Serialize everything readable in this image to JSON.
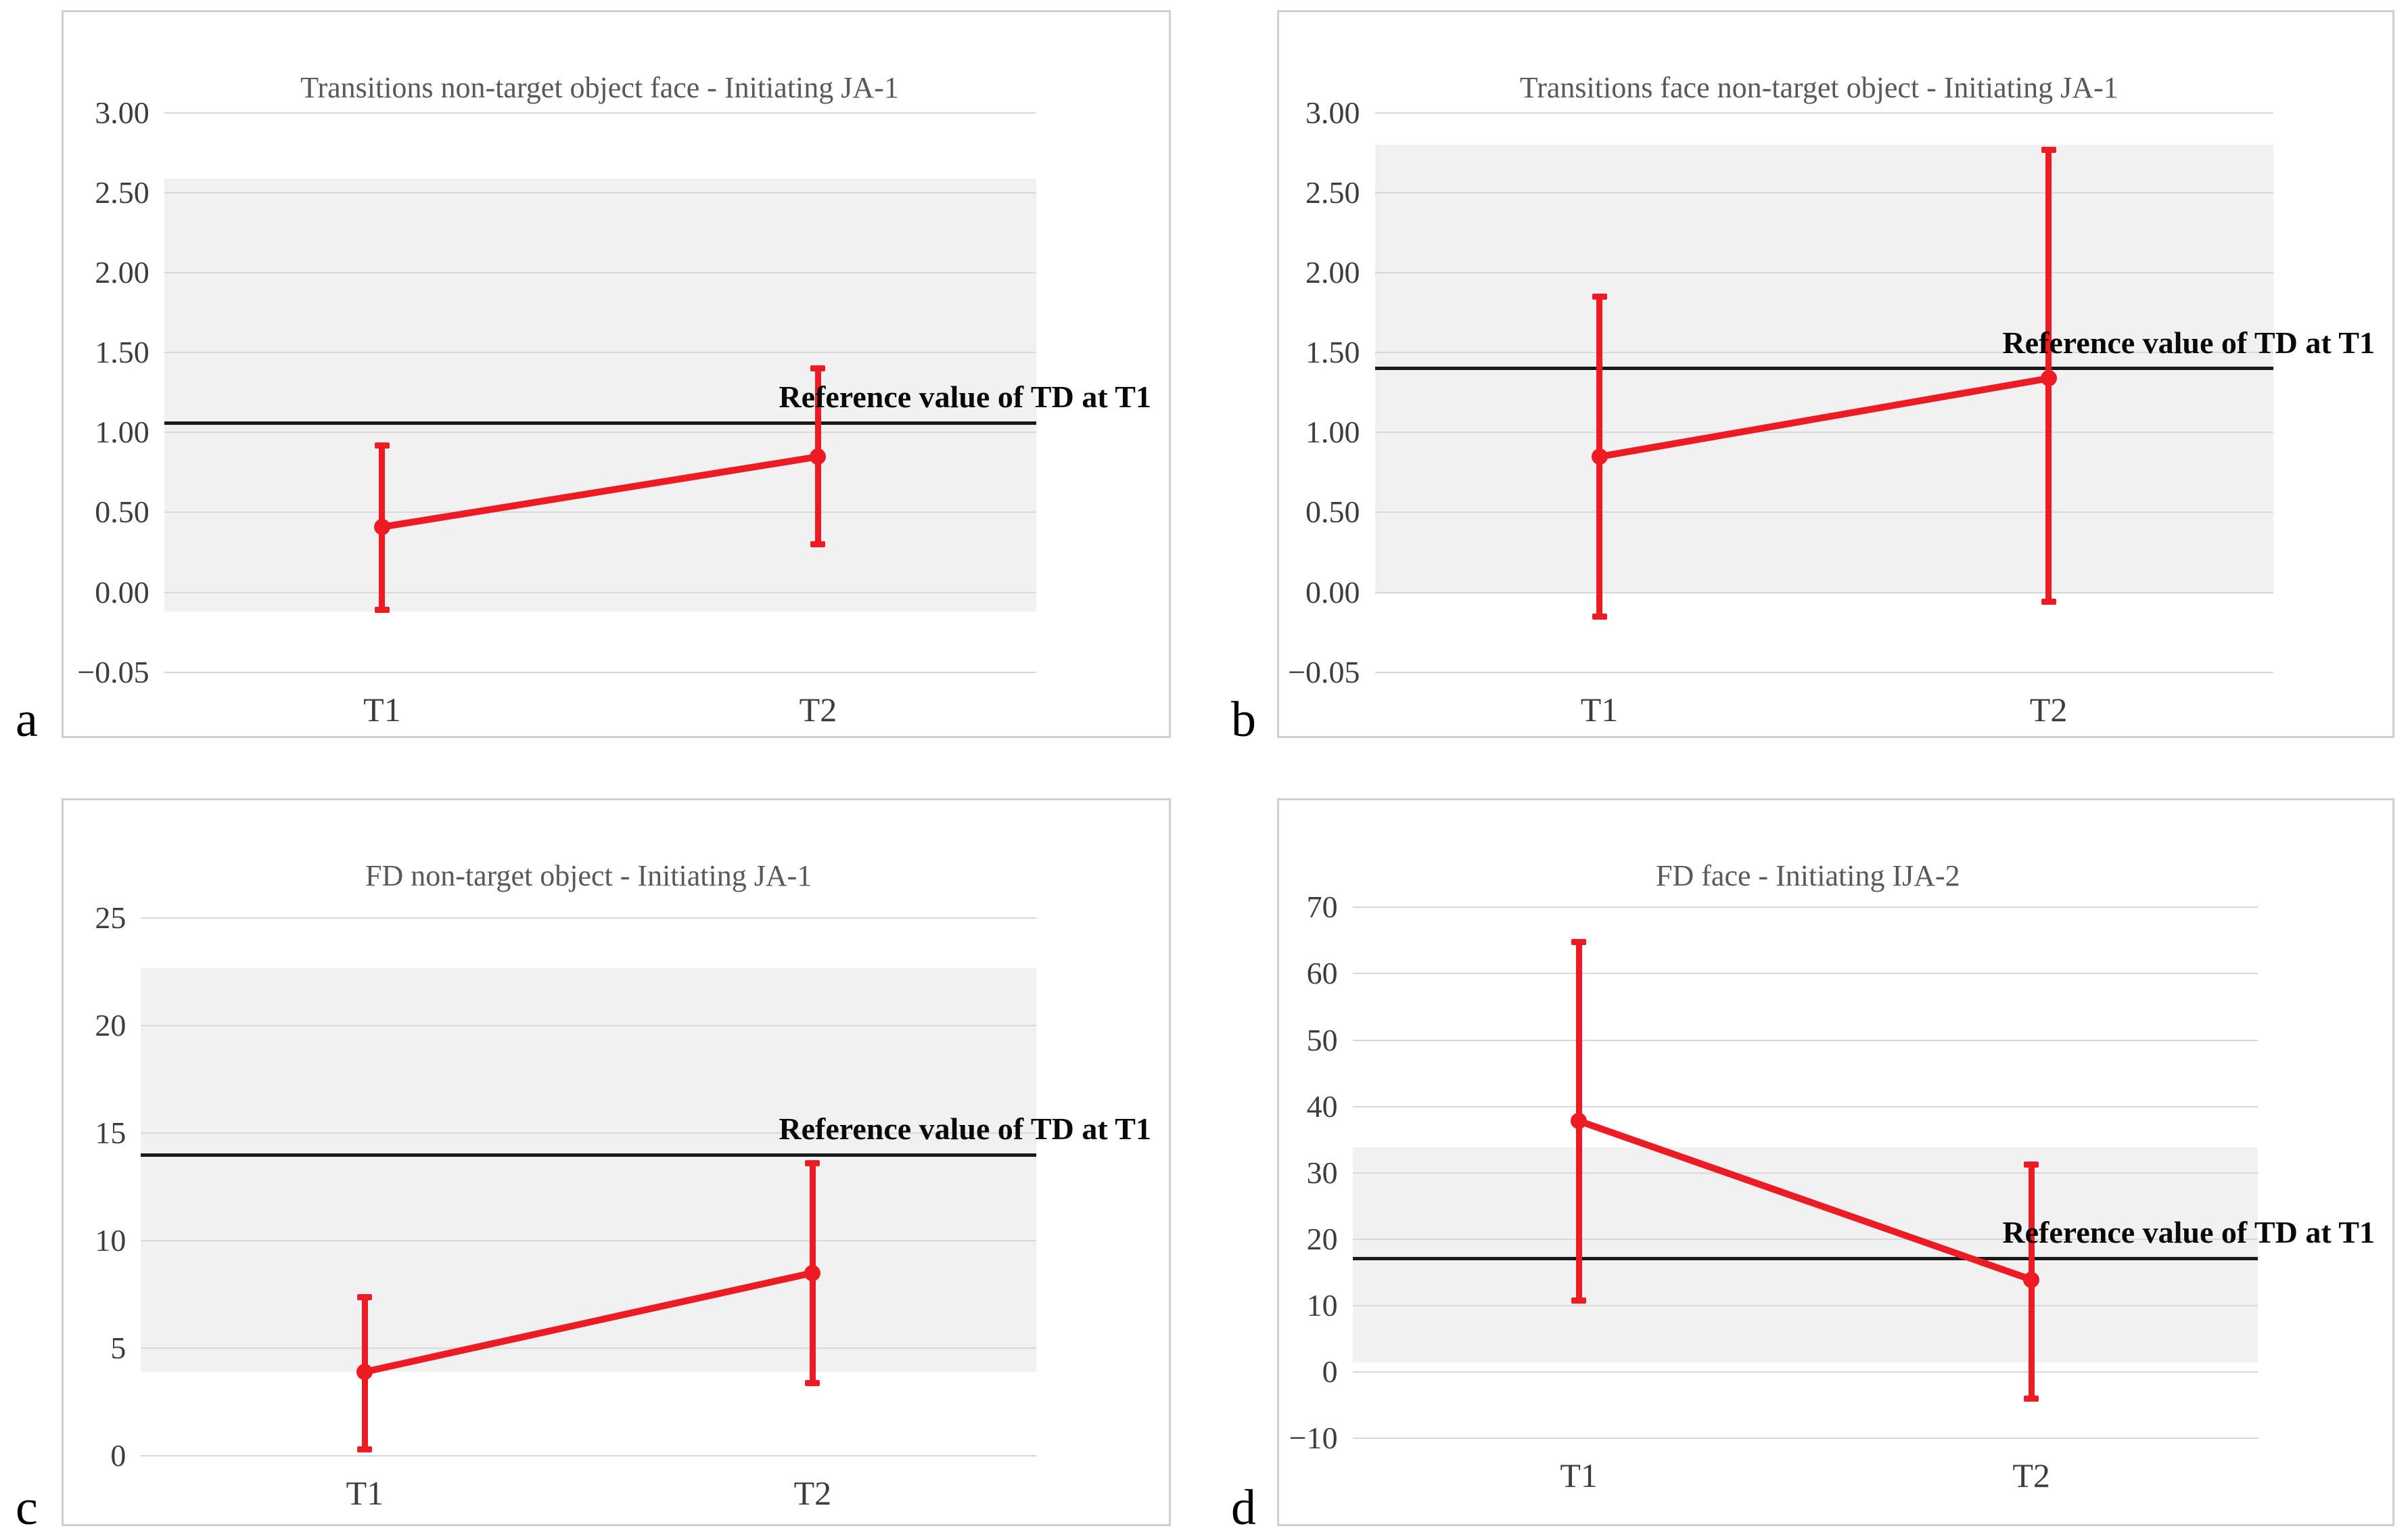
{
  "figure": {
    "style": {
      "series_red": "#ed1b24",
      "band_gray": "#f1f1f1",
      "gridline_gray": "#d8d8d8",
      "reference_line_black": "#1a1a1a",
      "title_gray": "#595959",
      "tick_gray": "#3d3d3d",
      "frame_gray": "#cfcfcf",
      "background": "#ffffff"
    }
  },
  "chart_data": [
    {
      "type": "line",
      "panel_letter": "a",
      "title": "Transitions non-target object face - Initiating JA-1",
      "categories": [
        "T1",
        "T2"
      ],
      "y_ticks": [
        {
          "label": "3.00",
          "value": 3.0
        },
        {
          "label": "2.50",
          "value": 2.5
        },
        {
          "label": "2.00",
          "value": 2.0
        },
        {
          "label": "1.50",
          "value": 1.5
        },
        {
          "label": "1.00",
          "value": 1.0
        },
        {
          "label": "0.50",
          "value": 0.5
        },
        {
          "label": "0.00",
          "value": 0.0
        },
        {
          "label": "−0.05",
          "value": -0.05
        }
      ],
      "series": [
        {
          "color": "#ed1b24",
          "means": [
            0.41,
            0.85
          ],
          "lower": [
            -0.11,
            0.3
          ],
          "upper": [
            0.92,
            1.4
          ]
        }
      ],
      "reference_line": {
        "label": "Reference value of TD at T1",
        "value": 1.06
      },
      "band": {
        "from": -0.12,
        "to": 2.59
      },
      "grid": true,
      "legend": "none"
    },
    {
      "type": "line",
      "panel_letter": "b",
      "title": "Transitions face non-target object - Initiating JA-1",
      "categories": [
        "T1",
        "T2"
      ],
      "y_ticks": [
        {
          "label": "3.00",
          "value": 3.0
        },
        {
          "label": "2.50",
          "value": 2.5
        },
        {
          "label": "2.00",
          "value": 2.0
        },
        {
          "label": "1.50",
          "value": 1.5
        },
        {
          "label": "1.00",
          "value": 1.0
        },
        {
          "label": "0.50",
          "value": 0.5
        },
        {
          "label": "0.00",
          "value": 0.0
        },
        {
          "label": "−0.05",
          "value": -0.05
        }
      ],
      "series": [
        {
          "color": "#ed1b24",
          "means": [
            0.85,
            1.34
          ],
          "lower": [
            -0.15,
            -0.06
          ],
          "upper": [
            1.85,
            2.77
          ]
        }
      ],
      "reference_line": {
        "label": "Reference value of TD at T1",
        "value": 1.4
      },
      "band": {
        "from": -0.01,
        "to": 2.8
      },
      "grid": true,
      "legend": "none"
    },
    {
      "type": "line",
      "panel_letter": "c",
      "title": "FD non-target object - Initiating JA-1",
      "categories": [
        "T1",
        "T2"
      ],
      "y_ticks": [
        {
          "label": "25",
          "value": 25
        },
        {
          "label": "20",
          "value": 20
        },
        {
          "label": "15",
          "value": 15
        },
        {
          "label": "10",
          "value": 10
        },
        {
          "label": "5",
          "value": 5
        },
        {
          "label": "0",
          "value": 0
        }
      ],
      "series": [
        {
          "color": "#ed1b24",
          "means": [
            3.9,
            8.5
          ],
          "lower": [
            0.3,
            3.4
          ],
          "upper": [
            7.4,
            13.6
          ]
        }
      ],
      "reference_line": {
        "label": "Reference value of TD at T1",
        "value": 14.0
      },
      "band": {
        "from": 3.9,
        "to": 22.7
      },
      "grid": true,
      "legend": "none"
    },
    {
      "type": "line",
      "panel_letter": "d",
      "title": "FD face - Initiating IJA-2",
      "categories": [
        "T1",
        "T2"
      ],
      "y_ticks": [
        {
          "label": "70",
          "value": 70
        },
        {
          "label": "60",
          "value": 60
        },
        {
          "label": "50",
          "value": 50
        },
        {
          "label": "40",
          "value": 40
        },
        {
          "label": "30",
          "value": 30
        },
        {
          "label": "20",
          "value": 20
        },
        {
          "label": "10",
          "value": 10
        },
        {
          "label": "0",
          "value": 0
        },
        {
          "label": "−10",
          "value": -10
        }
      ],
      "series": [
        {
          "color": "#ed1b24",
          "means": [
            37.8,
            13.9
          ],
          "lower": [
            10.8,
            -4.0
          ],
          "upper": [
            64.8,
            31.3
          ]
        }
      ],
      "reference_line": {
        "label": "Reference value of TD at T1",
        "value": 17.1
      },
      "band": {
        "from": 1.5,
        "to": 33.9
      },
      "grid": true,
      "legend": "none"
    }
  ]
}
